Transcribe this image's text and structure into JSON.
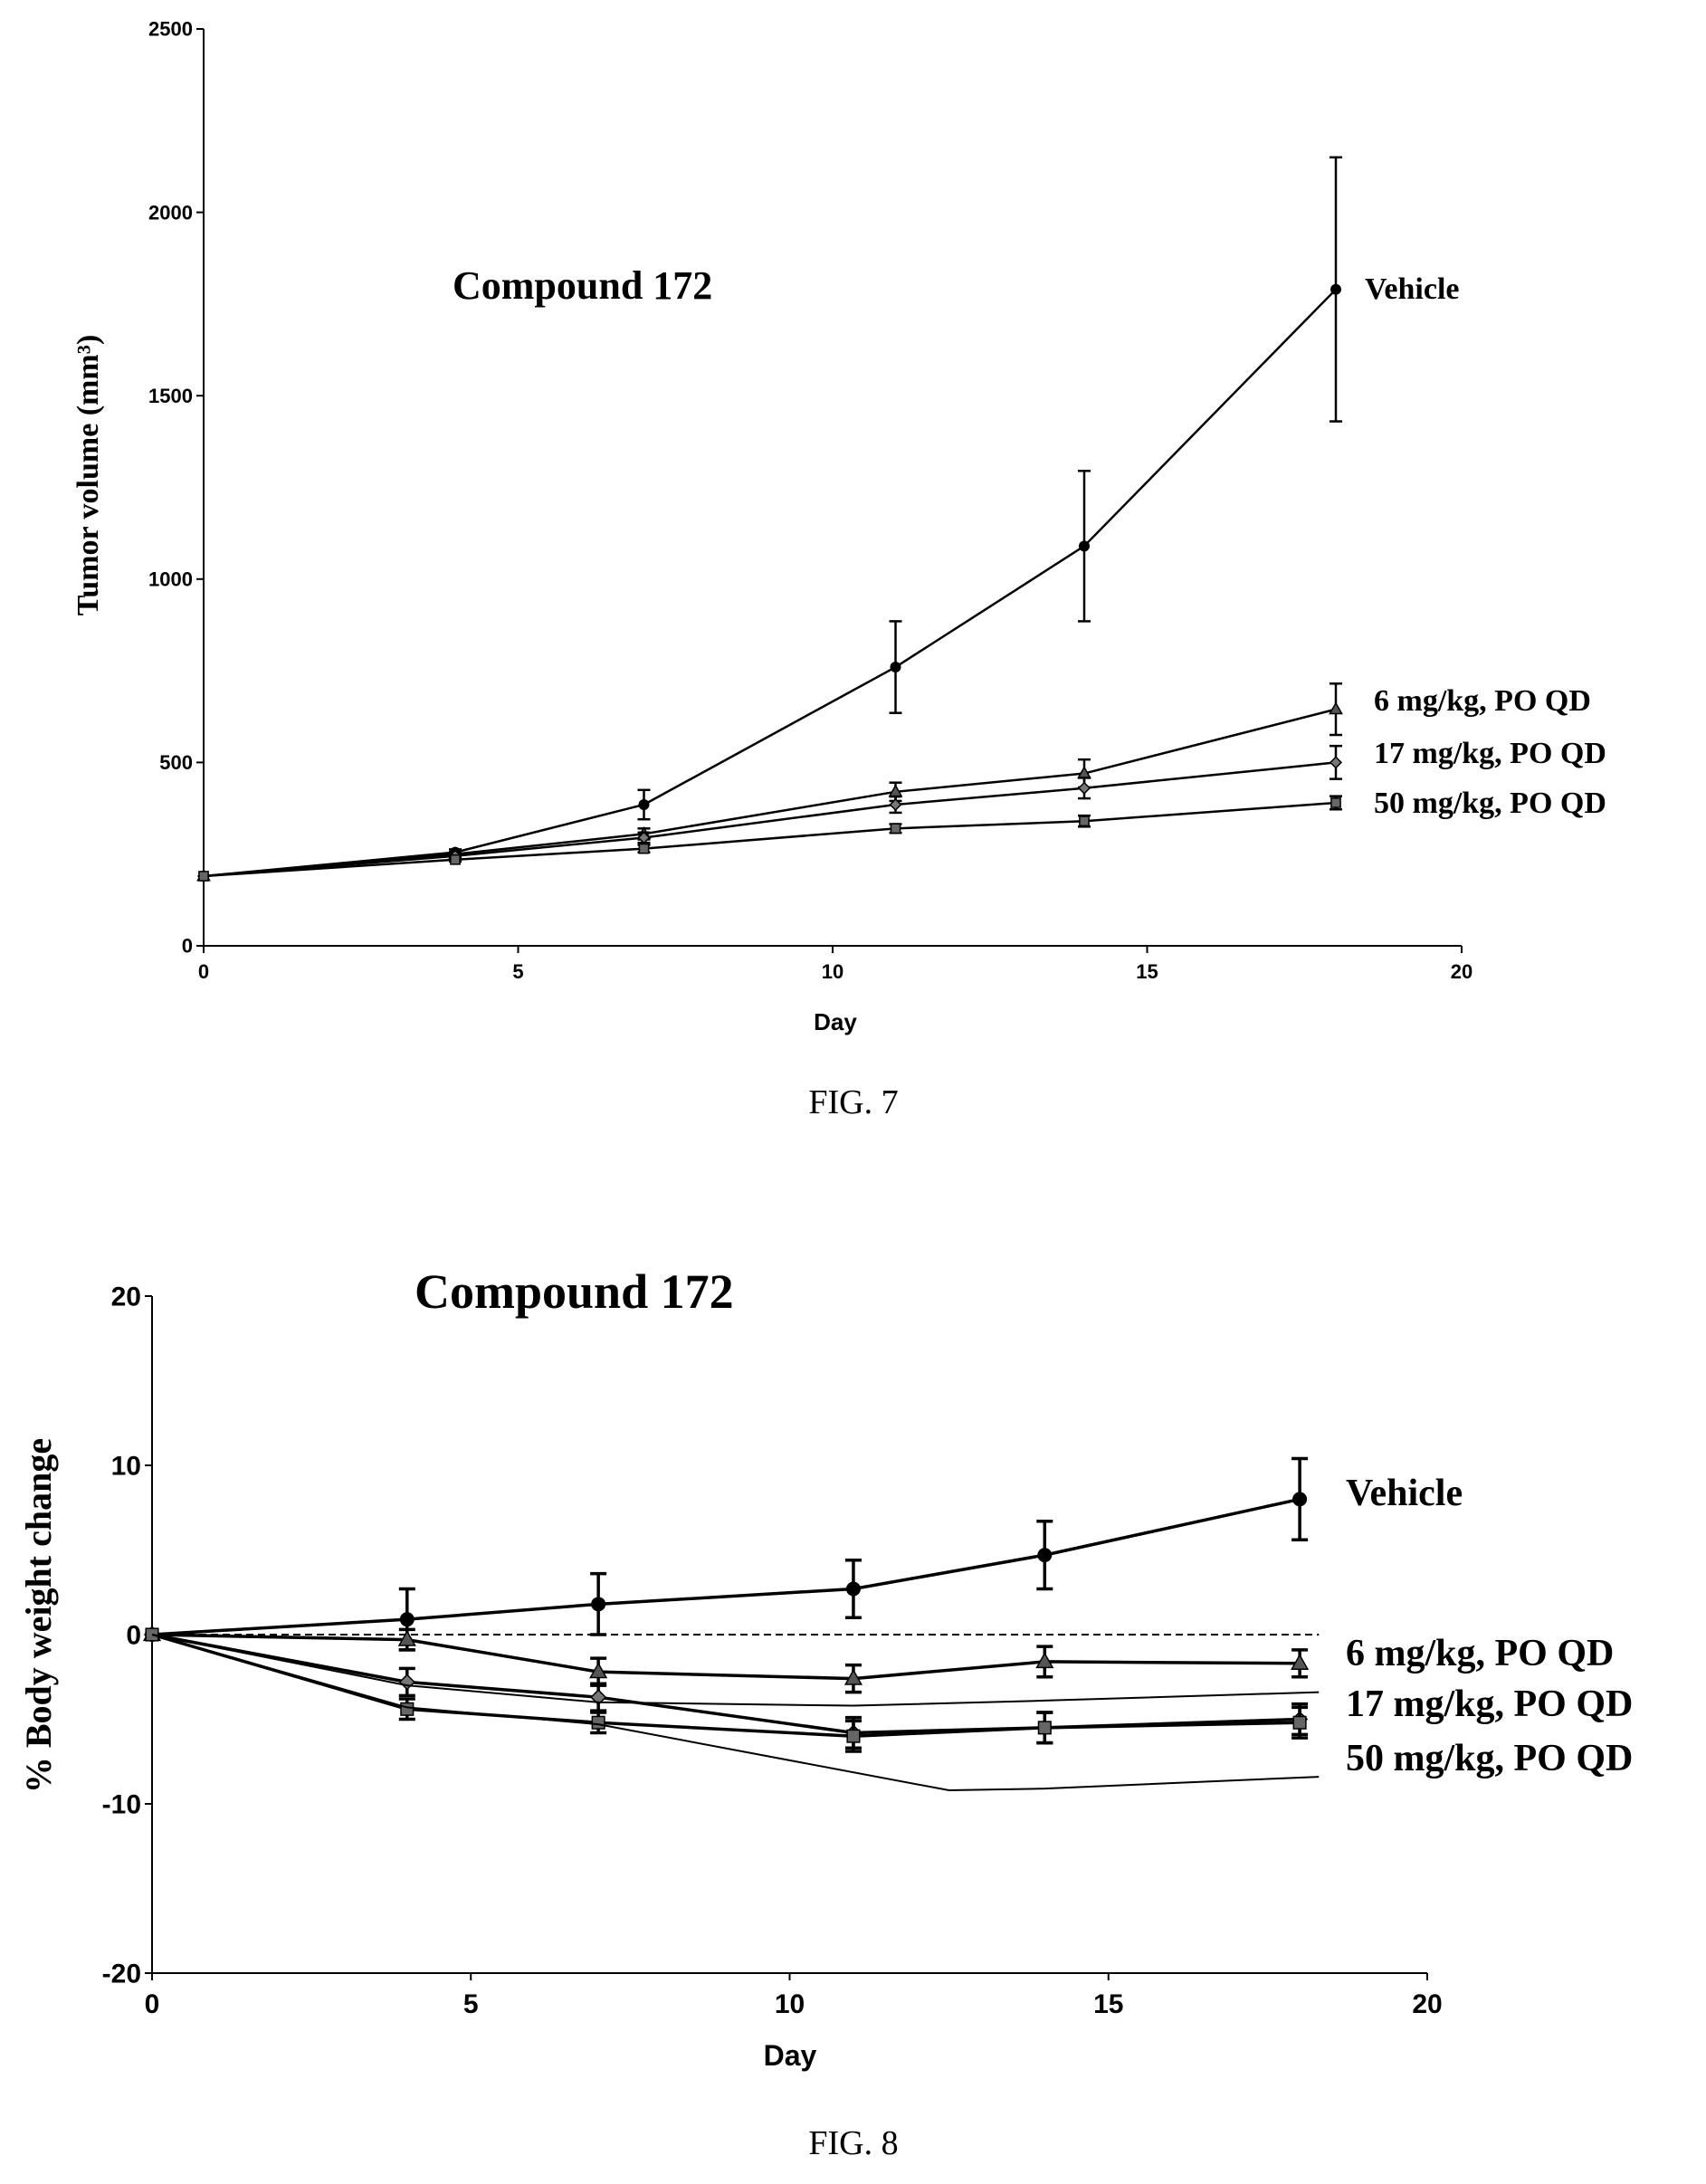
{
  "chart_data": [
    {
      "type": "line",
      "title": "Compound 172",
      "xlabel": "Day",
      "ylabel": "Tumor volume (mm³)",
      "xlim": [
        0,
        20
      ],
      "ylim": [
        0,
        2500
      ],
      "xticks": [
        0,
        5,
        10,
        15,
        20
      ],
      "yticks": [
        0,
        500,
        1000,
        1500,
        2000,
        2500
      ],
      "grid": false,
      "series": [
        {
          "name": "Vehicle",
          "marker": "circle",
          "x": [
            0,
            4,
            7,
            11,
            14,
            18
          ],
          "y": [
            190,
            255,
            385,
            760,
            1090,
            1790
          ],
          "err": [
            0,
            8,
            40,
            125,
            205,
            360
          ]
        },
        {
          "name": "6 mg/kg, PO QD",
          "marker": "triangle",
          "x": [
            0,
            4,
            7,
            11,
            14,
            18
          ],
          "y": [
            190,
            250,
            305,
            420,
            470,
            645
          ],
          "err": [
            0,
            6,
            15,
            25,
            38,
            70
          ]
        },
        {
          "name": "17 mg/kg, PO QD",
          "marker": "diamond",
          "x": [
            0,
            4,
            7,
            11,
            14,
            18
          ],
          "y": [
            190,
            245,
            295,
            385,
            430,
            500
          ],
          "err": [
            0,
            6,
            14,
            22,
            28,
            45
          ]
        },
        {
          "name": "50 mg/kg, PO QD",
          "marker": "square",
          "x": [
            0,
            4,
            7,
            11,
            14,
            18
          ],
          "y": [
            190,
            235,
            265,
            320,
            340,
            390
          ],
          "err": [
            0,
            5,
            10,
            12,
            15,
            18
          ]
        }
      ],
      "caption": "FIG. 7"
    },
    {
      "type": "line",
      "title": "Compound 172",
      "xlabel": "Day",
      "ylabel": "% Body weight change",
      "xlim": [
        0,
        20
      ],
      "ylim": [
        -20,
        20
      ],
      "xticks": [
        0,
        5,
        10,
        15,
        20
      ],
      "yticks": [
        -20,
        -10,
        0,
        10,
        20
      ],
      "grid": false,
      "baseline": {
        "y": 0,
        "x": [
          0,
          18.3
        ]
      },
      "series": [
        {
          "name": "Vehicle",
          "marker": "circle",
          "x": [
            0,
            4,
            7,
            11,
            14,
            18
          ],
          "y": [
            0,
            0.9,
            1.8,
            2.7,
            4.7,
            8.0
          ],
          "err": [
            0,
            1.8,
            1.8,
            1.7,
            2.0,
            2.4
          ]
        },
        {
          "name": "6 mg/kg, PO QD",
          "marker": "triangle",
          "x": [
            0,
            4,
            7,
            11,
            14,
            18
          ],
          "y": [
            0,
            -0.3,
            -2.2,
            -2.6,
            -1.6,
            -1.7
          ],
          "err": [
            0,
            0.6,
            0.8,
            0.8,
            0.9,
            0.8
          ]
        },
        {
          "name": "17 mg/kg, PO QD",
          "marker": "diamond",
          "x": [
            0,
            4,
            7,
            11,
            14,
            18
          ],
          "y": [
            0,
            -2.8,
            -3.7,
            -5.8,
            -5.5,
            -5.0
          ],
          "err": [
            0,
            0.8,
            0.8,
            0.9,
            0.9,
            0.9
          ]
        },
        {
          "name": "50 mg/kg, PO QD",
          "marker": "square",
          "x": [
            0,
            4,
            7,
            11,
            14,
            18
          ],
          "y": [
            0,
            -4.4,
            -5.2,
            -6.0,
            -5.5,
            -5.2
          ],
          "err": [
            0,
            0.6,
            0.6,
            0.9,
            0.9,
            0.9
          ]
        },
        {
          "name": "",
          "marker": "none",
          "x": [
            0,
            4,
            7,
            11,
            14,
            18.3
          ],
          "y": [
            0,
            -3.0,
            -4.0,
            -4.2,
            -3.9,
            -3.4
          ],
          "err": [
            0,
            0,
            0,
            0,
            0,
            0
          ]
        },
        {
          "name": "",
          "marker": "none",
          "x": [
            0,
            4,
            7,
            12.5,
            14,
            18.3
          ],
          "y": [
            0,
            -4.3,
            -5.3,
            -9.2,
            -9.1,
            -8.4
          ],
          "err": [
            0,
            0,
            0,
            0,
            0,
            0
          ]
        }
      ],
      "caption": "FIG. 8"
    }
  ]
}
